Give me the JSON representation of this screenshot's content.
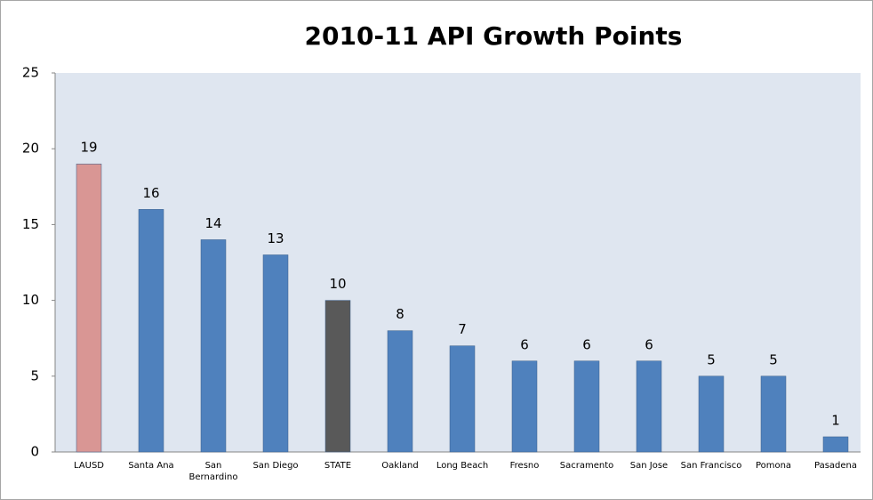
{
  "chart_data": {
    "type": "bar",
    "title": "2010-11 API Growth Points",
    "categories": [
      "LAUSD",
      "Santa Ana",
      "San\nBernardino",
      "San Diego",
      "STATE",
      "Oakland",
      "Long Beach",
      "Fresno",
      "Sacramento",
      "San Jose",
      "San Francisco",
      "Pomona",
      "Pasadena"
    ],
    "values": [
      19,
      16,
      14,
      13,
      10,
      8,
      7,
      6,
      6,
      6,
      5,
      5,
      1
    ],
    "colors": [
      "#d99694",
      "#4f81bd",
      "#4f81bd",
      "#4f81bd",
      "#595959",
      "#4f81bd",
      "#4f81bd",
      "#4f81bd",
      "#4f81bd",
      "#4f81bd",
      "#4f81bd",
      "#4f81bd",
      "#4f81bd"
    ],
    "ylim": [
      0,
      25
    ],
    "yticks": [
      0,
      5,
      10,
      15,
      20,
      25
    ],
    "grid": false
  }
}
